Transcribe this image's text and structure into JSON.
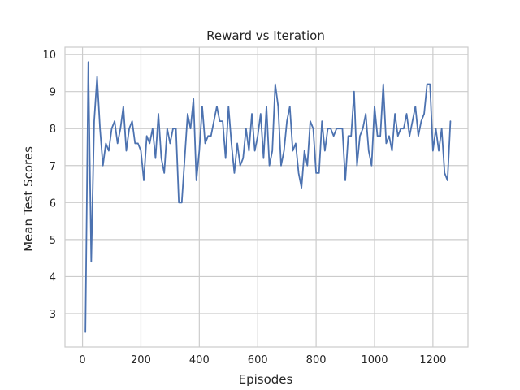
{
  "chart_data": {
    "type": "line",
    "title": "Reward vs Iteration",
    "xlabel": "Episodes",
    "ylabel": "Mean Test Scores",
    "xlim": [
      -60,
      1320
    ],
    "ylim": [
      2.1,
      10.2
    ],
    "xticks": [
      0,
      200,
      400,
      600,
      800,
      1000,
      1200
    ],
    "yticks": [
      3,
      4,
      5,
      6,
      7,
      8,
      9,
      10
    ],
    "grid": true,
    "line_color": "#4c72b0",
    "series": [
      {
        "x": [
          10,
          20,
          30,
          40,
          50,
          60,
          70,
          80,
          90,
          100,
          110,
          120,
          130,
          140,
          150,
          160,
          170,
          180,
          190,
          200,
          210,
          220,
          230,
          240,
          250,
          260,
          270,
          280,
          290,
          300,
          310,
          320,
          330,
          340,
          350,
          360,
          370,
          380,
          390,
          400,
          410,
          420,
          430,
          440,
          450,
          460,
          470,
          480,
          490,
          500,
          510,
          520,
          530,
          540,
          550,
          560,
          570,
          580,
          590,
          600,
          610,
          620,
          630,
          640,
          650,
          660,
          670,
          680,
          690,
          700,
          710,
          720,
          730,
          740,
          750,
          760,
          770,
          780,
          790,
          800,
          810,
          820,
          830,
          840,
          850,
          860,
          870,
          880,
          890,
          900,
          910,
          920,
          930,
          940,
          950,
          960,
          970,
          980,
          990,
          1000,
          1010,
          1020,
          1030,
          1040,
          1050,
          1060,
          1070,
          1080,
          1090,
          1100,
          1110,
          1120,
          1130,
          1140,
          1150,
          1160,
          1170,
          1180,
          1190,
          1200,
          1210,
          1220,
          1230,
          1240,
          1250,
          1260
        ],
        "y": [
          2.5,
          9.8,
          4.4,
          8.2,
          9.4,
          8.0,
          7.0,
          7.6,
          7.4,
          8.0,
          8.2,
          7.6,
          8.0,
          8.6,
          7.4,
          8.0,
          8.2,
          7.6,
          7.6,
          7.4,
          6.6,
          7.8,
          7.6,
          8.0,
          7.2,
          8.4,
          7.2,
          6.8,
          8.0,
          7.6,
          8.0,
          8.0,
          6.0,
          6.0,
          7.2,
          8.4,
          8.0,
          8.8,
          6.6,
          7.4,
          8.6,
          7.6,
          7.8,
          7.8,
          8.2,
          8.6,
          8.2,
          8.2,
          7.2,
          8.6,
          7.6,
          6.8,
          7.6,
          7.0,
          7.2,
          8.0,
          7.4,
          8.4,
          7.4,
          7.8,
          8.4,
          7.2,
          8.6,
          7.0,
          7.4,
          9.2,
          8.6,
          7.0,
          7.4,
          8.2,
          8.6,
          7.4,
          7.6,
          6.8,
          6.4,
          7.4,
          7.0,
          8.2,
          8.0,
          6.8,
          6.8,
          8.2,
          7.4,
          8.0,
          8.0,
          7.8,
          8.0,
          8.0,
          8.0,
          6.6,
          7.8,
          7.8,
          9.0,
          7.0,
          7.8,
          8.0,
          8.4,
          7.4,
          7.0,
          8.6,
          7.8,
          7.8,
          9.2,
          7.6,
          7.8,
          7.4,
          8.4,
          7.8,
          8.0,
          8.0,
          8.4,
          7.8,
          8.2,
          8.6,
          7.8,
          8.2,
          8.4,
          9.2,
          9.2,
          7.4,
          8.0,
          7.4,
          8.0,
          6.8,
          6.6,
          8.2
        ]
      }
    ]
  }
}
